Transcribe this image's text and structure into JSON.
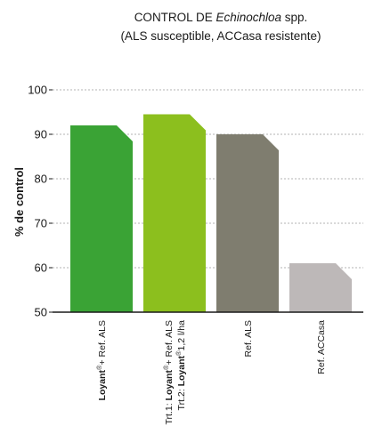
{
  "chart_data": {
    "type": "bar",
    "title": {
      "line1_prefix": "CONTROL DE ",
      "line1_italic": "Echinochloa",
      "line1_suffix": " spp.",
      "line2": "(ALS susceptible, ACCasa resistente)"
    },
    "ylabel": "% de control",
    "xlabel": "",
    "ylim": [
      50,
      100
    ],
    "yticks": [
      50,
      60,
      70,
      80,
      90,
      100
    ],
    "grid": true,
    "categories": [
      "Loyant®+ Ref. ALS",
      "Trt.1: Loyant®+ Ref. ALS / Trt.2: Loyant®1,2 l/ha",
      "Ref. ALS",
      "Ref. ACCasa"
    ],
    "category_labels": [
      [
        [
          {
            "t": "Loyant",
            "b": true
          },
          {
            "t": "®",
            "b": false,
            "sup": true
          },
          {
            "t": "+ Ref. ALS",
            "b": false
          }
        ]
      ],
      [
        [
          {
            "t": "Trt.1: ",
            "b": false
          },
          {
            "t": "Loyant",
            "b": true
          },
          {
            "t": "®",
            "b": false,
            "sup": true
          },
          {
            "t": "+ Ref. ALS",
            "b": false
          }
        ],
        [
          {
            "t": "Trt.2: ",
            "b": false
          },
          {
            "t": "Loyant",
            "b": true
          },
          {
            "t": "®",
            "b": false,
            "sup": true
          },
          {
            "t": "1,2 l/ha",
            "b": false
          }
        ]
      ],
      [
        [
          {
            "t": "Ref. ALS",
            "b": false
          }
        ]
      ],
      [
        [
          {
            "t": "Ref. ACCasa",
            "b": false
          }
        ]
      ]
    ],
    "values": [
      92,
      94.5,
      90,
      61
    ],
    "colors": [
      "#3aa335",
      "#8cbf1e",
      "#7f7d6f",
      "#bdb8b8"
    ]
  }
}
